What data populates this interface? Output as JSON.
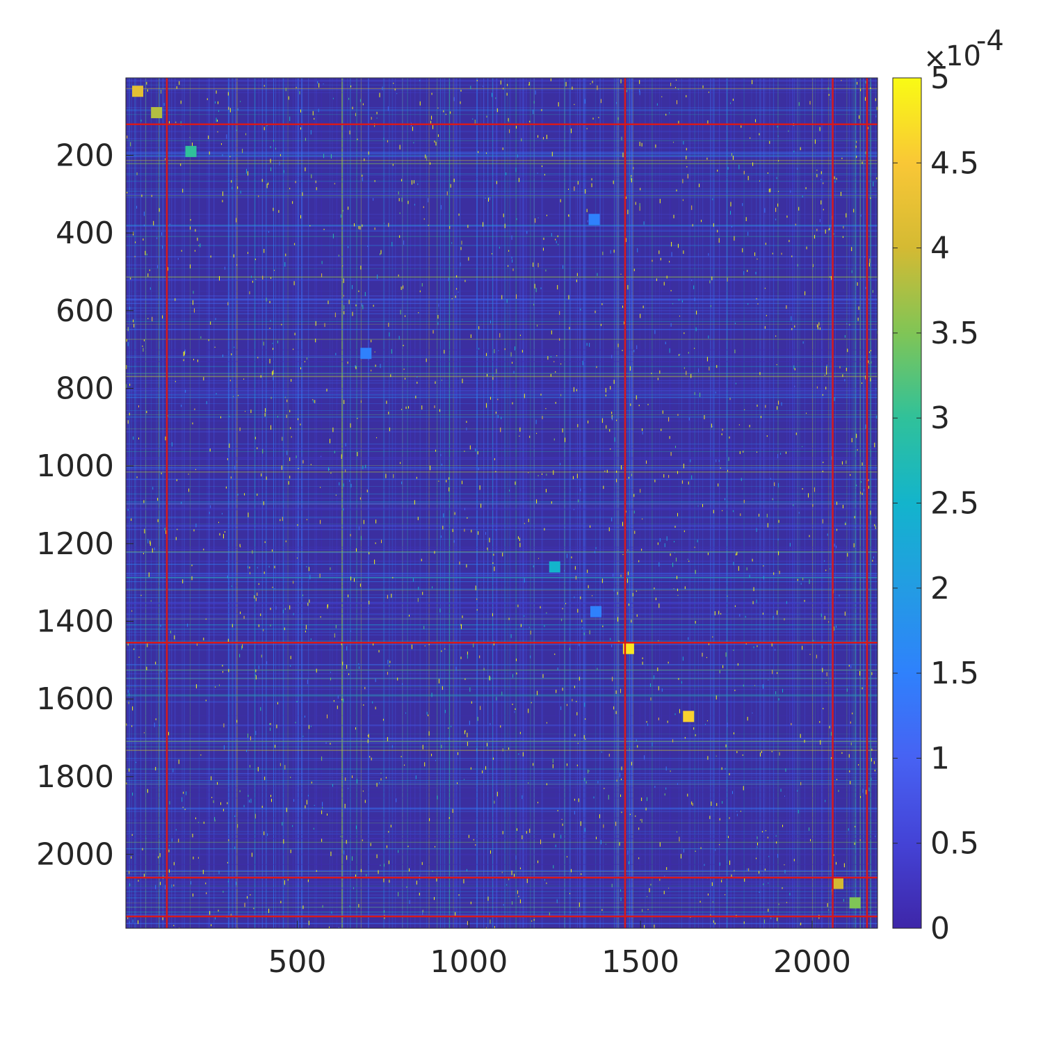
{
  "chart_data": {
    "type": "heatmap",
    "title": "",
    "xlabel": "",
    "ylabel": "",
    "matrix_size": 2190,
    "xlim": [
      1,
      2190
    ],
    "ylim": [
      1,
      2190
    ],
    "y_direction": "top-down",
    "x_ticks": [
      500,
      1000,
      1500,
      2000
    ],
    "y_ticks": [
      200,
      400,
      600,
      800,
      1000,
      1200,
      1400,
      1600,
      1800,
      2000
    ],
    "color_limits": [
      0,
      0.0005
    ],
    "colormap": "parula",
    "colorbar": {
      "placement": "right",
      "ticks": [
        "0",
        "0.5",
        "1",
        "1.5",
        "2",
        "2.5",
        "3",
        "3.5",
        "4",
        "4.5",
        "5"
      ],
      "tick_values": [
        0,
        0.5,
        1,
        1.5,
        2,
        2.5,
        3,
        3.5,
        4,
        4.5,
        5
      ],
      "multiplier_times": "×",
      "multiplier_base": "10",
      "multiplier_exponent": "-4"
    },
    "block_boundaries": [
      120,
      1455,
      2060,
      2160
    ],
    "boundary_color": "#d7191c",
    "grid": false,
    "notable_diagonal_blocks": [
      {
        "row": 35,
        "col": 35,
        "value": 4.2
      },
      {
        "row": 90,
        "col": 90,
        "value": 3.8
      },
      {
        "row": 190,
        "col": 190,
        "value": 3.0
      },
      {
        "row": 365,
        "col": 1365,
        "value": 1.5
      },
      {
        "row": 710,
        "col": 700,
        "value": 1.5
      },
      {
        "row": 1260,
        "col": 1250,
        "value": 2.5
      },
      {
        "row": 1375,
        "col": 1370,
        "value": 1.5
      },
      {
        "row": 1470,
        "col": 1465,
        "value": 4.8
      },
      {
        "row": 1645,
        "col": 1640,
        "value": 4.6
      },
      {
        "row": 2075,
        "col": 2075,
        "value": 4.0
      },
      {
        "row": 2125,
        "col": 2125,
        "value": 3.5
      }
    ]
  }
}
